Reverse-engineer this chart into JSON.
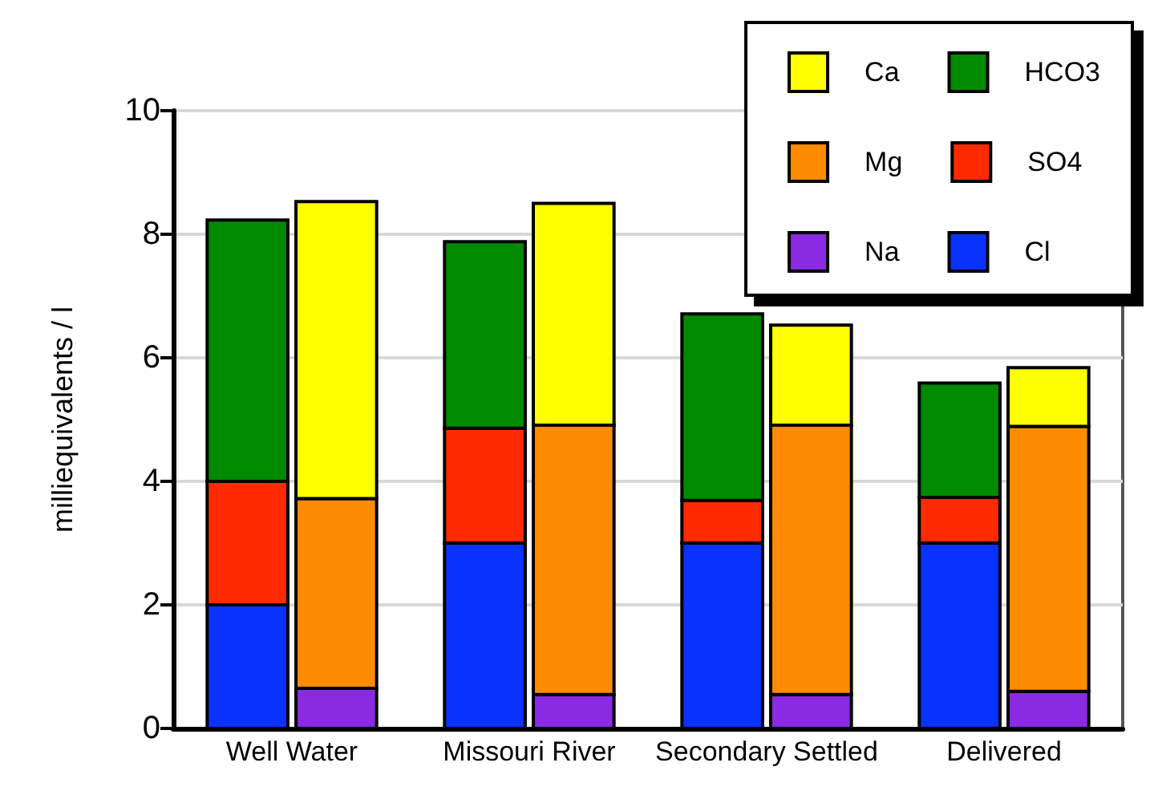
{
  "chart_data": {
    "type": "bar",
    "ylabel": "milliequivalents / l",
    "categories": [
      "Well Water",
      "Missouri River",
      "Secondary Settled",
      "Delivered"
    ],
    "series": [
      {
        "name": "Cl",
        "color": "#0a32ff",
        "values": [
          2.0,
          3.0,
          3.0,
          3.0
        ],
        "base": [
          0,
          0,
          0,
          0
        ]
      },
      {
        "name": "Na",
        "color": "#8a2be2",
        "values": [
          0.65,
          0.55,
          0.55,
          0.6
        ],
        "base": [
          0,
          0,
          0,
          0
        ]
      },
      {
        "name": "SO4",
        "color": "#ff2a00",
        "values": [
          2.0,
          1.86,
          0.69,
          0.74
        ],
        "base": [
          2.0,
          3.0,
          3.0,
          3.0
        ]
      },
      {
        "name": "Mg",
        "color": "#ff8c00",
        "values": [
          3.07,
          4.36,
          4.36,
          4.29
        ],
        "base": [
          0.65,
          0.55,
          0.55,
          0.6
        ]
      },
      {
        "name": "HCO3",
        "color": "#008a00",
        "values": [
          4.23,
          3.02,
          3.02,
          1.85
        ],
        "base": [
          4.0,
          4.86,
          3.69,
          3.74
        ]
      },
      {
        "name": "Ca",
        "color": "#ffff00",
        "values": [
          4.81,
          3.59,
          1.62,
          0.95
        ],
        "base": [
          3.72,
          4.91,
          4.91,
          4.89
        ]
      }
    ],
    "ylim": [
      0,
      10
    ],
    "yticks": [
      0,
      2,
      4,
      6,
      8,
      10
    ],
    "grid": "y",
    "legend": "top right"
  }
}
